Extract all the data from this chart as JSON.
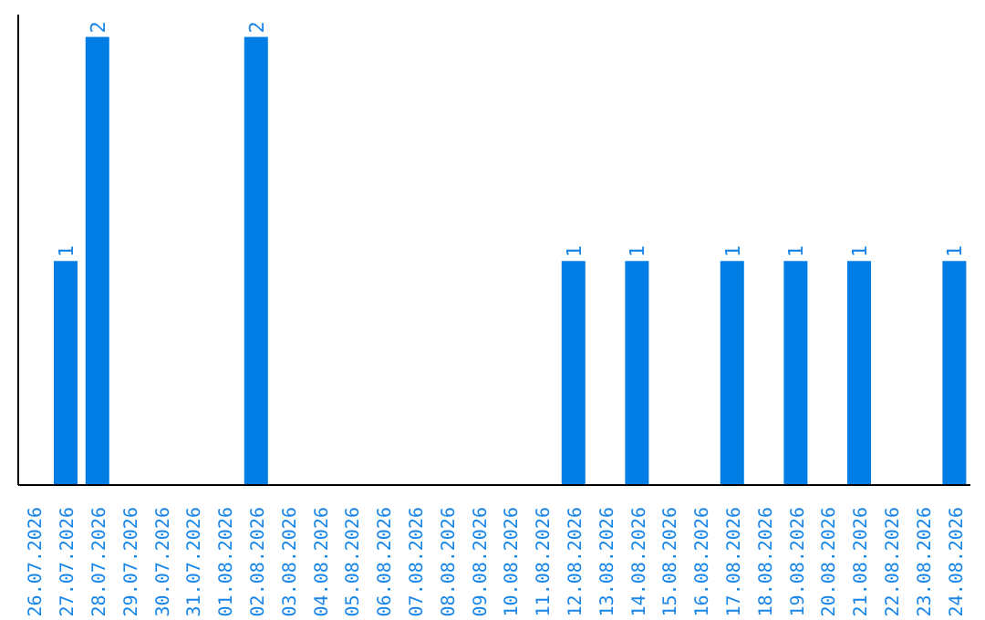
{
  "chart_data": {
    "type": "bar",
    "categories": [
      "26.07.2026",
      "27.07.2026",
      "28.07.2026",
      "29.07.2026",
      "30.07.2026",
      "31.07.2026",
      "01.08.2026",
      "02.08.2026",
      "03.08.2026",
      "04.08.2026",
      "05.08.2026",
      "06.08.2026",
      "07.08.2026",
      "08.08.2026",
      "09.08.2026",
      "10.08.2026",
      "11.08.2026",
      "12.08.2026",
      "13.08.2026",
      "14.08.2026",
      "15.08.2026",
      "16.08.2026",
      "17.08.2026",
      "18.08.2026",
      "19.08.2026",
      "20.08.2026",
      "21.08.2026",
      "22.08.2026",
      "23.08.2026",
      "24.08.2026"
    ],
    "values": [
      null,
      1,
      2,
      null,
      null,
      null,
      null,
      2,
      null,
      null,
      null,
      null,
      null,
      null,
      null,
      null,
      null,
      1,
      null,
      1,
      null,
      null,
      1,
      null,
      1,
      null,
      1,
      null,
      null,
      1
    ],
    "color": "#007ee5",
    "data_labels": true,
    "tick_labels": "x",
    "grid": false,
    "legend": false
  }
}
